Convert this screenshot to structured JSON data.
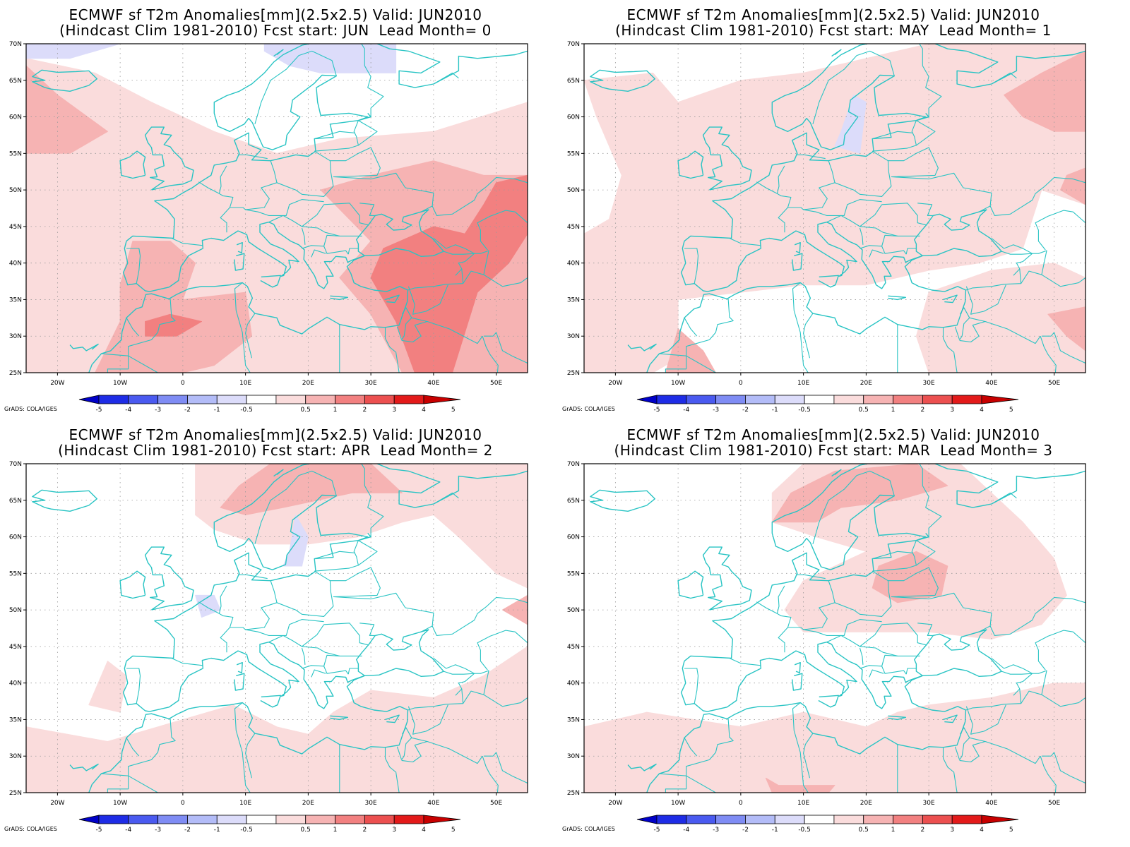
{
  "panels": [
    {
      "title_line1": "ECMWF sf T2m Anomalies[mm](2.5x2.5) Valid: JUN2010",
      "title_line2": "(Hindcast Clim 1981-2010) Fcst start: JUN  Lead Month= 0",
      "credit": "GrADS: COLA/IGES"
    },
    {
      "title_line1": "ECMWF sf T2m Anomalies[mm](2.5x2.5) Valid: JUN2010",
      "title_line2": "(Hindcast Clim 1981-2010) Fcst start: MAY  Lead Month= 1",
      "credit": "GrADS: COLA/IGES"
    },
    {
      "title_line1": "ECMWF sf T2m Anomalies[mm](2.5x2.5) Valid: JUN2010",
      "title_line2": "(Hindcast Clim 1981-2010) Fcst start: APR  Lead Month= 2",
      "credit": "GrADS: COLA/IGES"
    },
    {
      "title_line1": "ECMWF sf T2m Anomalies[mm](2.5x2.5) Valid: JUN2010",
      "title_line2": "(Hindcast Clim 1981-2010) Fcst start: MAR  Lead Month= 3",
      "credit": "GrADS: COLA/IGES"
    }
  ],
  "map": {
    "lon_range": [
      -25,
      55
    ],
    "lat_range": [
      25,
      70
    ],
    "lon_ticks": [
      -20,
      -10,
      0,
      10,
      20,
      30,
      40,
      50
    ],
    "lon_tick_labels": [
      "20W",
      "10W",
      "0",
      "10E",
      "20E",
      "30E",
      "40E",
      "50E"
    ],
    "lat_ticks": [
      25,
      30,
      35,
      40,
      45,
      50,
      55,
      60,
      65,
      70
    ],
    "lat_tick_labels": [
      "25N",
      "30N",
      "35N",
      "40N",
      "45N",
      "50N",
      "55N",
      "60N",
      "65N",
      "70N"
    ],
    "coastline_color": "#29c4c4",
    "grid": "dotted"
  },
  "colorbar": {
    "labels": [
      "-5",
      "-4",
      "-3",
      "-2",
      "-1",
      "-0.5",
      "0.5",
      "1",
      "2",
      "3",
      "4",
      "5"
    ],
    "colors": [
      "#0000c8",
      "#1e2ce6",
      "#4a5af0",
      "#7f8cf4",
      "#b3bcf8",
      "#dcdcfa",
      "#ffffff",
      "#fadcdc",
      "#f6b3b3",
      "#f28080",
      "#ec5050",
      "#e31a1a",
      "#c80000"
    ]
  },
  "anomaly_colors": {
    "neg_light": "#dcdcfa",
    "pos_1": "#fadcdc",
    "pos_2": "#f6b3b3",
    "pos_3": "#f28080"
  }
}
